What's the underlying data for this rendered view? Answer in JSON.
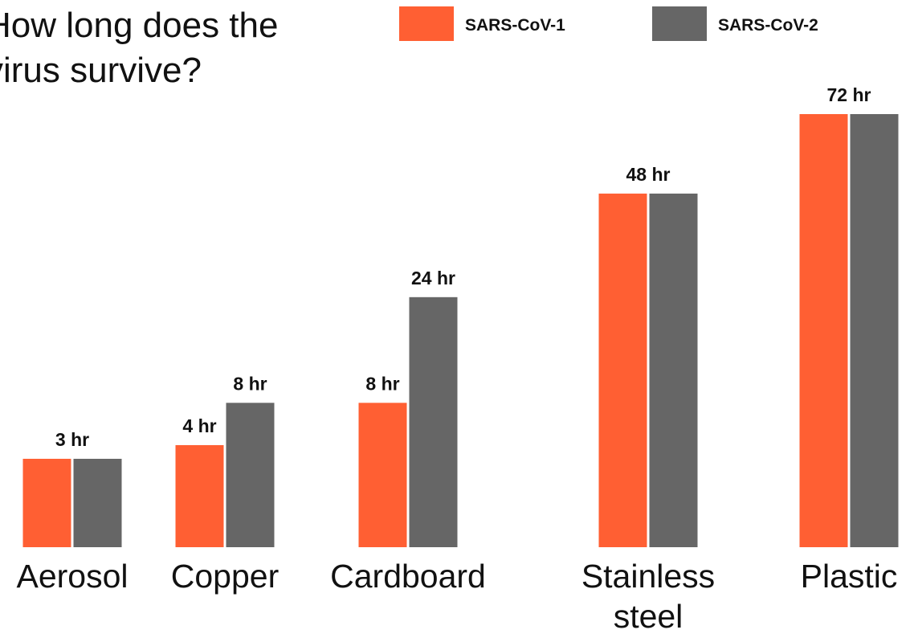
{
  "chart_data": {
    "type": "bar",
    "title": "How long does the virus survive?",
    "categories": [
      "Aerosol",
      "Copper",
      "Cardboard",
      "Stainless steel",
      "Plastic"
    ],
    "series": [
      {
        "name": "SARS-CoV-1",
        "color": "#ff5f33",
        "values": [
          3,
          4,
          8,
          48,
          72
        ],
        "value_labels": [
          "3 hr",
          "4 hr",
          "8 hr",
          "48 hr",
          "72 hr"
        ]
      },
      {
        "name": "SARS-CoV-2",
        "color": "#666666",
        "values": [
          3,
          8,
          24,
          48,
          72
        ],
        "value_labels": [
          null,
          "8 hr",
          "24 hr",
          null,
          null
        ]
      }
    ]
  }
}
